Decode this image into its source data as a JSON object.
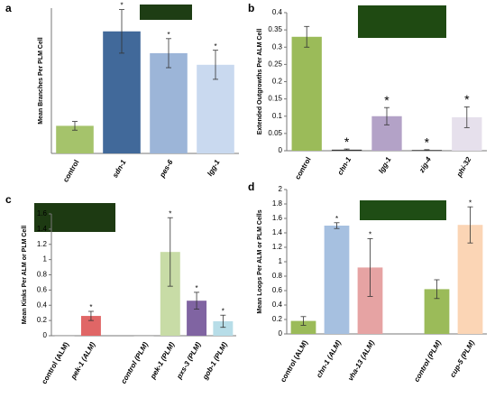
{
  "chart_data": [
    {
      "type": "bar",
      "panel": "a",
      "ylabel": "Mean Branches Per PLM Cell",
      "categories": [
        "control",
        "sdn-1",
        "pes-6",
        "lgg-1"
      ],
      "values": [
        0.19,
        0.84,
        0.69,
        0.61
      ],
      "errors": [
        0.03,
        0.15,
        0.1,
        0.1
      ],
      "significance": [
        null,
        "*",
        "*",
        "*"
      ],
      "colors": [
        "#a5c36b",
        "#41699a",
        "#9cb5d8",
        "#c9d9ef"
      ],
      "ylim": [
        0,
        1
      ]
    },
    {
      "type": "bar",
      "panel": "b",
      "ylabel": "Extended Outgrowths Per ALM Cell",
      "categories": [
        "control",
        "chn-1",
        "lgg-1",
        "zig-4",
        "phi-32"
      ],
      "values": [
        0.33,
        0.003,
        0.1,
        0.002,
        0.097
      ],
      "errors": [
        0.03,
        0.002,
        0.025,
        0.001,
        0.03
      ],
      "significance": [
        null,
        "*",
        "*",
        "*",
        "*"
      ],
      "colors": [
        "#9bbb59",
        "#333333",
        "#b3a2c7",
        "#333333",
        "#e6e0ec"
      ],
      "ylim": [
        0,
        0.4
      ],
      "yticks": [
        0,
        0.05,
        0.1,
        0.15,
        0.2,
        0.25,
        0.3,
        0.35,
        0.4
      ]
    },
    {
      "type": "bar",
      "panel": "c",
      "ylabel": "Mean Kinks Per ALM or PLM Cell",
      "categories": [
        "control (ALM)",
        "pek-1 (ALM)",
        null,
        "control (PLM)",
        "pek-1 (PLM)",
        "pxs-3 (PLM)",
        "gob-1 (PLM)"
      ],
      "values": [
        0,
        0.26,
        null,
        0,
        1.1,
        0.46,
        0.19
      ],
      "errors": [
        0,
        0.06,
        null,
        0,
        0.45,
        0.11,
        0.08
      ],
      "significance": [
        null,
        "*",
        null,
        null,
        "*",
        "*",
        "*"
      ],
      "colors": [
        "#c0c0c0",
        "#e06666",
        null,
        "#c0c0c0",
        "#c8dca6",
        "#8064a2",
        "#b7dde8"
      ],
      "ylim": [
        0,
        1.6
      ],
      "yticks": [
        0,
        0.2,
        0.4,
        0.6,
        0.8,
        1,
        1.2,
        1.4,
        1.6
      ]
    },
    {
      "type": "bar",
      "panel": "d",
      "ylabel": "Mean Loops Per ALM or PLM Cells",
      "categories": [
        "control (ALM)",
        "chn-1 (ALM)",
        "vha-13 (ALM)",
        null,
        "control (PLM)",
        "cup-5 (PLM)"
      ],
      "values": [
        0.18,
        1.5,
        0.92,
        null,
        0.62,
        1.51
      ],
      "errors": [
        0.06,
        0.04,
        0.4,
        null,
        0.13,
        0.25
      ],
      "significance": [
        null,
        "*",
        "*",
        null,
        null,
        "*"
      ],
      "colors": [
        "#9bbb59",
        "#a6c0e0",
        "#e6a3a3",
        null,
        "#9bbb59",
        "#fbd5b5"
      ],
      "ylim": [
        0,
        2
      ],
      "yticks": [
        0,
        0.2,
        0.4,
        0.6,
        0.8,
        1,
        1.2,
        1.4,
        1.6,
        1.8,
        2
      ]
    }
  ]
}
